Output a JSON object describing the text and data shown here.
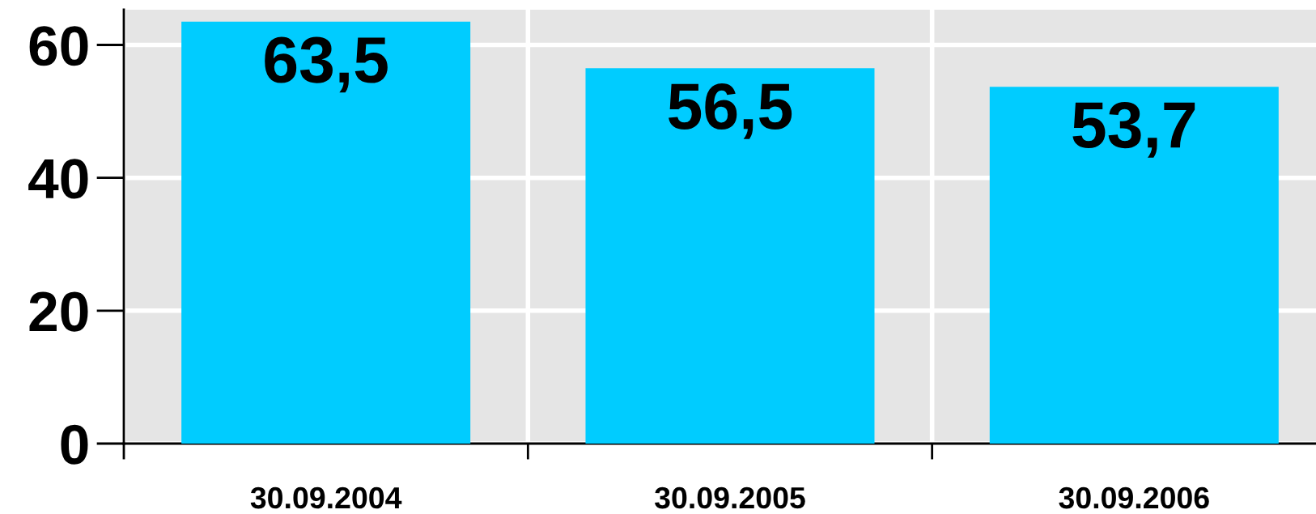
{
  "chart_data": {
    "type": "bar",
    "categories": [
      "30.09.2004",
      "30.09.2005",
      "30.09.2006"
    ],
    "values": [
      63.5,
      56.5,
      53.7
    ],
    "color": "#00ccff",
    "value_labels": [
      "63,5",
      "56,5",
      "53,7"
    ],
    "ylim": [
      0,
      65.3
    ],
    "yticks": [
      0,
      20,
      40,
      60
    ],
    "grid": true
  }
}
